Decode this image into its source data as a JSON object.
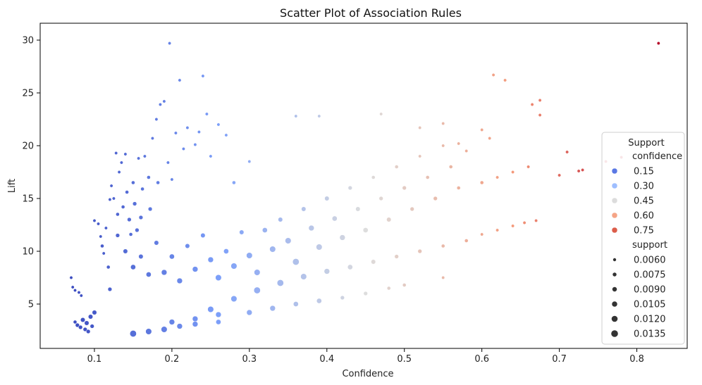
{
  "chart_data": {
    "type": "scatter",
    "title": "Scatter Plot of Association Rules",
    "xlabel": "Confidence",
    "ylabel": "Lift",
    "xlim": [
      0.03,
      0.865
    ],
    "ylim": [
      0.8,
      31.6
    ],
    "x_ticks": [
      "0.1",
      "0.2",
      "0.3",
      "0.4",
      "0.5",
      "0.6",
      "0.7",
      "0.8"
    ],
    "x_tick_values": [
      0.1,
      0.2,
      0.3,
      0.4,
      0.5,
      0.6,
      0.7,
      0.8
    ],
    "y_ticks": [
      "5",
      "10",
      "15",
      "20",
      "25",
      "30"
    ],
    "y_tick_values": [
      5,
      10,
      15,
      20,
      25,
      30
    ],
    "grid": false,
    "color_encoding": "confidence",
    "size_encoding": "support",
    "colormap": "coolwarm",
    "color_range": [
      0.07,
      0.83
    ],
    "legend": {
      "title": "Support",
      "placement": "right",
      "hue_title": "confidence",
      "hue_entries": [
        {
          "label": "0.15",
          "color": "#5a78e4"
        },
        {
          "label": "0.30",
          "color": "#9ebeff"
        },
        {
          "label": "0.45",
          "color": "#dcdcdc"
        },
        {
          "label": "0.60",
          "color": "#f5a486"
        },
        {
          "label": "0.75",
          "color": "#dc5d4a"
        }
      ],
      "size_title": "support",
      "size_entries": [
        {
          "label": "0.0060",
          "value": 0.006
        },
        {
          "label": "0.0075",
          "value": 0.0075
        },
        {
          "label": "0.0090",
          "value": 0.009
        },
        {
          "label": "0.0105",
          "value": 0.0105
        },
        {
          "label": "0.0120",
          "value": 0.012
        },
        {
          "label": "0.0135",
          "value": 0.0135
        }
      ]
    },
    "points": [
      [
        0.07,
        7.5,
        0.006
      ],
      [
        0.072,
        6.6,
        0.006
      ],
      [
        0.075,
        6.3,
        0.006
      ],
      [
        0.08,
        6.1,
        0.006
      ],
      [
        0.083,
        5.8,
        0.006
      ],
      [
        0.075,
        3.3,
        0.007
      ],
      [
        0.078,
        3.0,
        0.008
      ],
      [
        0.082,
        2.8,
        0.008
      ],
      [
        0.085,
        3.5,
        0.009
      ],
      [
        0.088,
        2.6,
        0.008
      ],
      [
        0.09,
        3.2,
        0.009
      ],
      [
        0.092,
        2.4,
        0.008
      ],
      [
        0.095,
        3.8,
        0.009
      ],
      [
        0.097,
        2.9,
        0.008
      ],
      [
        0.1,
        4.2,
        0.009
      ],
      [
        0.1,
        12.9,
        0.006
      ],
      [
        0.105,
        12.6,
        0.006
      ],
      [
        0.108,
        11.4,
        0.006
      ],
      [
        0.11,
        10.5,
        0.007
      ],
      [
        0.112,
        9.8,
        0.006
      ],
      [
        0.115,
        12.2,
        0.006
      ],
      [
        0.118,
        8.5,
        0.007
      ],
      [
        0.12,
        6.4,
        0.008
      ],
      [
        0.12,
        14.9,
        0.006
      ],
      [
        0.122,
        16.2,
        0.006
      ],
      [
        0.125,
        15.0,
        0.006
      ],
      [
        0.128,
        19.3,
        0.006
      ],
      [
        0.13,
        13.5,
        0.007
      ],
      [
        0.132,
        17.5,
        0.006
      ],
      [
        0.135,
        18.4,
        0.006
      ],
      [
        0.137,
        14.2,
        0.007
      ],
      [
        0.14,
        19.2,
        0.006
      ],
      [
        0.142,
        15.6,
        0.007
      ],
      [
        0.145,
        13.0,
        0.008
      ],
      [
        0.147,
        11.6,
        0.007
      ],
      [
        0.15,
        16.5,
        0.007
      ],
      [
        0.152,
        14.5,
        0.008
      ],
      [
        0.155,
        12.0,
        0.008
      ],
      [
        0.157,
        18.8,
        0.006
      ],
      [
        0.16,
        13.2,
        0.008
      ],
      [
        0.162,
        15.9,
        0.007
      ],
      [
        0.165,
        19.0,
        0.006
      ],
      [
        0.17,
        17.0,
        0.007
      ],
      [
        0.172,
        14.0,
        0.008
      ],
      [
        0.175,
        20.7,
        0.006
      ],
      [
        0.18,
        22.5,
        0.006
      ],
      [
        0.182,
        16.5,
        0.007
      ],
      [
        0.185,
        23.9,
        0.006
      ],
      [
        0.19,
        24.2,
        0.006
      ],
      [
        0.195,
        18.4,
        0.006
      ],
      [
        0.197,
        29.7,
        0.006
      ],
      [
        0.2,
        16.8,
        0.006
      ],
      [
        0.205,
        21.2,
        0.006
      ],
      [
        0.21,
        26.2,
        0.006
      ],
      [
        0.215,
        19.7,
        0.006
      ],
      [
        0.22,
        21.7,
        0.006
      ],
      [
        0.23,
        20.1,
        0.006
      ],
      [
        0.235,
        21.3,
        0.006
      ],
      [
        0.24,
        26.6,
        0.006
      ],
      [
        0.245,
        23.0,
        0.006
      ],
      [
        0.25,
        19.0,
        0.006
      ],
      [
        0.26,
        22.0,
        0.006
      ],
      [
        0.27,
        21.0,
        0.006
      ],
      [
        0.28,
        16.5,
        0.007
      ],
      [
        0.3,
        18.5,
        0.006
      ],
      [
        0.13,
        11.5,
        0.008
      ],
      [
        0.14,
        10.0,
        0.009
      ],
      [
        0.15,
        8.5,
        0.01
      ],
      [
        0.16,
        9.5,
        0.009
      ],
      [
        0.17,
        7.8,
        0.01
      ],
      [
        0.18,
        10.8,
        0.009
      ],
      [
        0.19,
        8.0,
        0.011
      ],
      [
        0.2,
        9.5,
        0.01
      ],
      [
        0.21,
        7.2,
        0.011
      ],
      [
        0.22,
        10.5,
        0.009
      ],
      [
        0.23,
        8.3,
        0.011
      ],
      [
        0.24,
        11.5,
        0.009
      ],
      [
        0.25,
        9.2,
        0.011
      ],
      [
        0.26,
        7.5,
        0.012
      ],
      [
        0.27,
        10.0,
        0.01
      ],
      [
        0.28,
        8.6,
        0.012
      ],
      [
        0.29,
        11.8,
        0.009
      ],
      [
        0.3,
        9.6,
        0.012
      ],
      [
        0.31,
        8.0,
        0.012
      ],
      [
        0.32,
        12.0,
        0.01
      ],
      [
        0.33,
        10.2,
        0.012
      ],
      [
        0.34,
        13.0,
        0.009
      ],
      [
        0.35,
        11.0,
        0.012
      ],
      [
        0.36,
        9.0,
        0.013
      ],
      [
        0.37,
        14.0,
        0.009
      ],
      [
        0.38,
        12.2,
        0.011
      ],
      [
        0.39,
        10.4,
        0.012
      ],
      [
        0.4,
        15.0,
        0.009
      ],
      [
        0.41,
        13.1,
        0.01
      ],
      [
        0.42,
        11.3,
        0.011
      ],
      [
        0.43,
        16.0,
        0.008
      ],
      [
        0.44,
        14.0,
        0.009
      ],
      [
        0.45,
        12.0,
        0.01
      ],
      [
        0.46,
        17.0,
        0.007
      ],
      [
        0.47,
        15.0,
        0.008
      ],
      [
        0.48,
        13.0,
        0.009
      ],
      [
        0.49,
        18.0,
        0.007
      ],
      [
        0.5,
        16.0,
        0.008
      ],
      [
        0.51,
        14.0,
        0.008
      ],
      [
        0.52,
        19.0,
        0.006
      ],
      [
        0.53,
        17.0,
        0.007
      ],
      [
        0.54,
        15.0,
        0.008
      ],
      [
        0.55,
        20.0,
        0.006
      ],
      [
        0.56,
        18.0,
        0.007
      ],
      [
        0.57,
        16.0,
        0.007
      ],
      [
        0.58,
        19.5,
        0.006
      ],
      [
        0.6,
        16.5,
        0.007
      ],
      [
        0.62,
        17.0,
        0.006
      ],
      [
        0.64,
        17.5,
        0.006
      ],
      [
        0.66,
        18.0,
        0.006
      ],
      [
        0.36,
        22.8,
        0.006
      ],
      [
        0.39,
        22.8,
        0.006
      ],
      [
        0.47,
        23.0,
        0.006
      ],
      [
        0.52,
        21.7,
        0.006
      ],
      [
        0.55,
        22.1,
        0.006
      ],
      [
        0.57,
        20.2,
        0.006
      ],
      [
        0.6,
        21.5,
        0.006
      ],
      [
        0.61,
        20.7,
        0.006
      ],
      [
        0.615,
        26.7,
        0.006
      ],
      [
        0.63,
        26.2,
        0.006
      ],
      [
        0.665,
        23.9,
        0.006
      ],
      [
        0.675,
        24.3,
        0.006
      ],
      [
        0.675,
        22.9,
        0.006
      ],
      [
        0.71,
        19.4,
        0.006
      ],
      [
        0.76,
        18.5,
        0.006
      ],
      [
        0.78,
        18.9,
        0.006
      ],
      [
        0.828,
        29.7,
        0.006
      ],
      [
        0.725,
        17.6,
        0.006
      ],
      [
        0.73,
        17.7,
        0.006
      ],
      [
        0.7,
        17.2,
        0.006
      ],
      [
        0.55,
        7.5,
        0.006
      ],
      [
        0.5,
        6.8,
        0.007
      ],
      [
        0.48,
        6.5,
        0.007
      ],
      [
        0.45,
        6.0,
        0.008
      ],
      [
        0.42,
        5.6,
        0.008
      ],
      [
        0.6,
        11.6,
        0.006
      ],
      [
        0.62,
        12.0,
        0.006
      ],
      [
        0.64,
        12.4,
        0.006
      ],
      [
        0.655,
        12.7,
        0.006
      ],
      [
        0.67,
        12.9,
        0.006
      ],
      [
        0.25,
        4.5,
        0.012
      ],
      [
        0.28,
        5.5,
        0.012
      ],
      [
        0.31,
        6.3,
        0.013
      ],
      [
        0.34,
        7.0,
        0.013
      ],
      [
        0.37,
        7.6,
        0.012
      ],
      [
        0.4,
        8.1,
        0.011
      ],
      [
        0.43,
        8.5,
        0.01
      ],
      [
        0.46,
        9.0,
        0.009
      ],
      [
        0.49,
        9.5,
        0.008
      ],
      [
        0.52,
        10.0,
        0.008
      ],
      [
        0.55,
        10.5,
        0.007
      ],
      [
        0.58,
        11.0,
        0.007
      ],
      [
        0.2,
        3.3,
        0.011
      ],
      [
        0.23,
        3.6,
        0.011
      ],
      [
        0.26,
        4.0,
        0.011
      ],
      [
        0.3,
        4.2,
        0.011
      ],
      [
        0.33,
        4.6,
        0.011
      ],
      [
        0.36,
        5.0,
        0.01
      ],
      [
        0.39,
        5.3,
        0.01
      ],
      [
        0.15,
        2.2,
        0.013
      ],
      [
        0.17,
        2.4,
        0.012
      ],
      [
        0.19,
        2.6,
        0.012
      ],
      [
        0.21,
        2.9,
        0.011
      ],
      [
        0.23,
        3.1,
        0.011
      ],
      [
        0.26,
        3.3,
        0.01
      ]
    ]
  }
}
